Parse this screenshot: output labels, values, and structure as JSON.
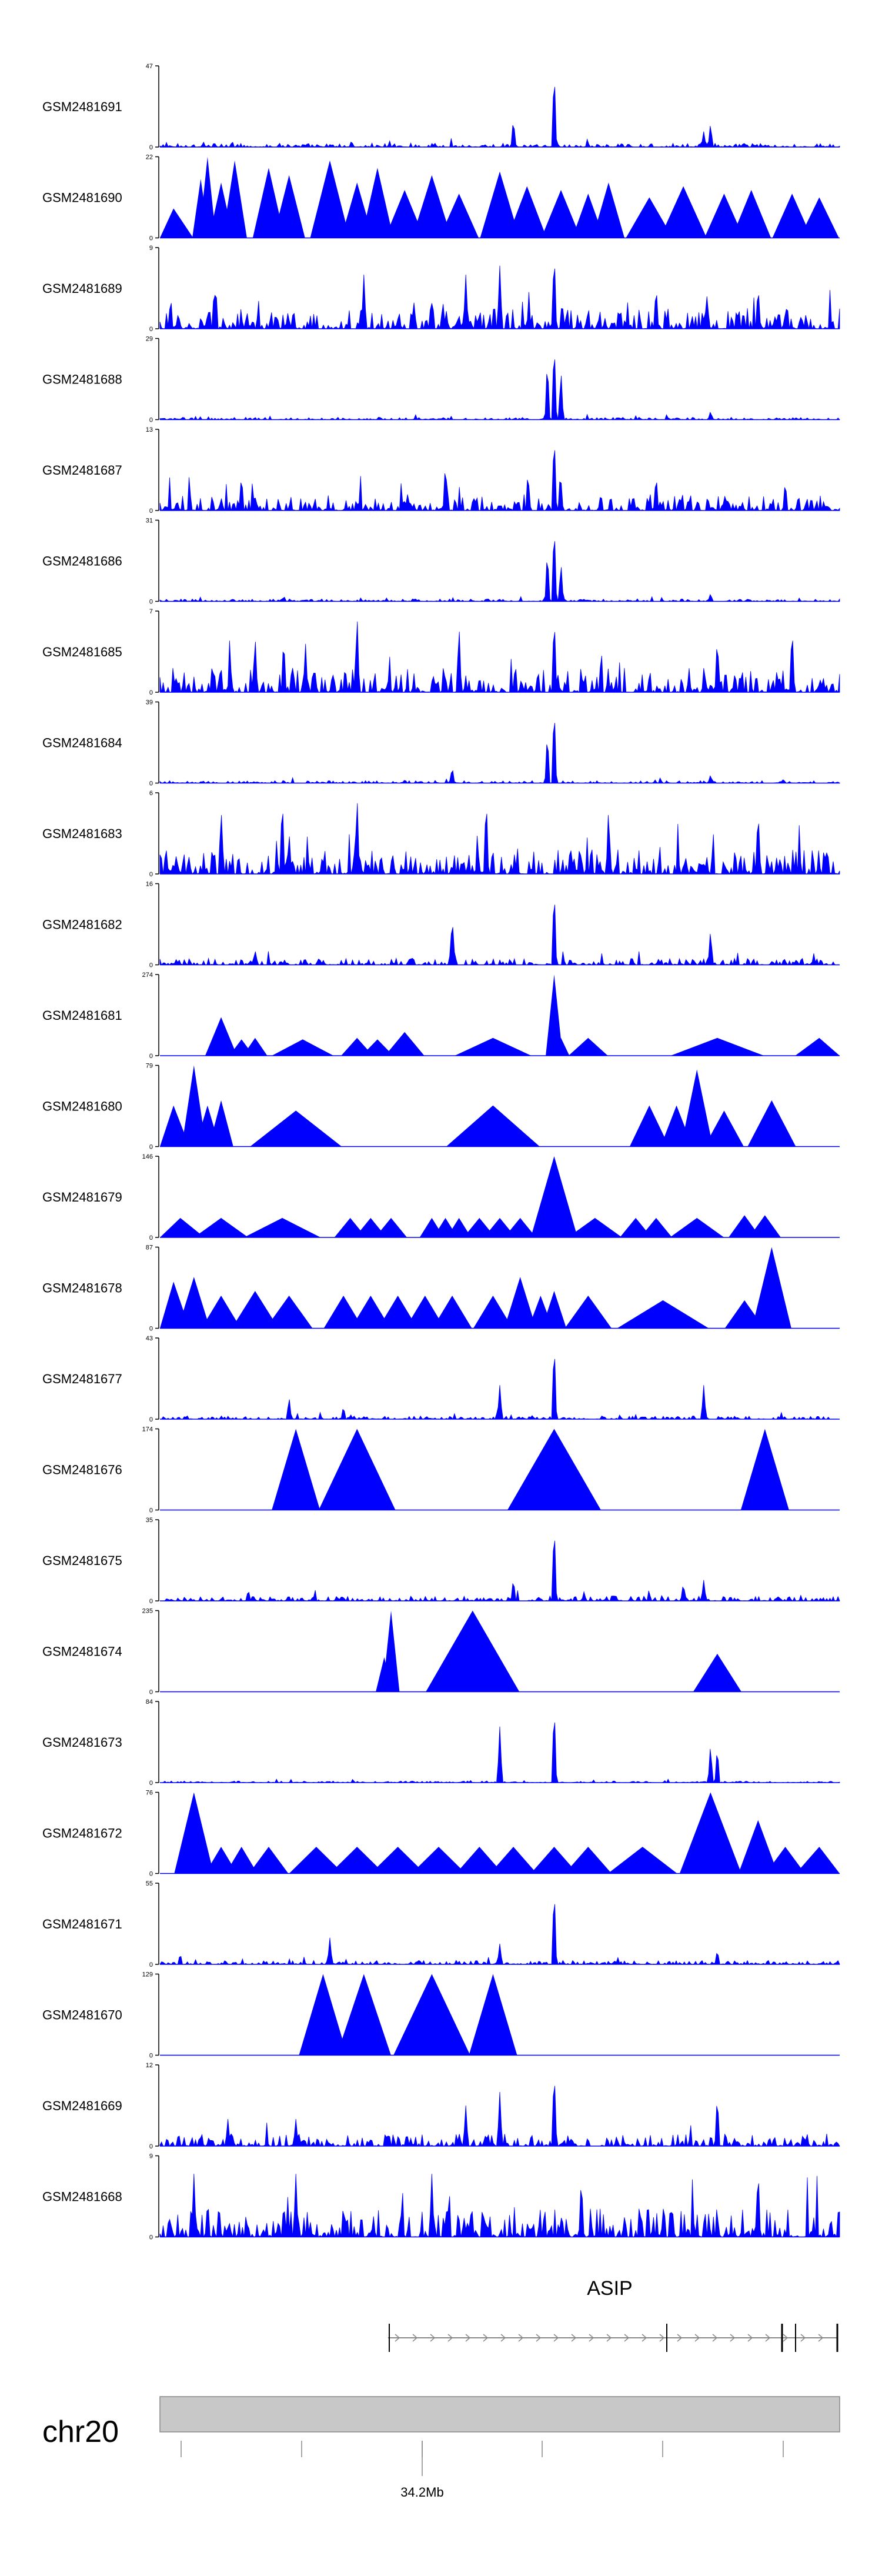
{
  "chart_data": {
    "type": "area",
    "x_unit": "genomic position",
    "tracks": [
      {
        "name": "GSM2481691",
        "ymax": 47,
        "style": "dense",
        "peaks": [
          [
            0.58,
            47
          ],
          [
            0.52,
            17
          ],
          [
            0.81,
            14
          ],
          [
            0.8,
            9
          ]
        ],
        "bg": 0.05
      },
      {
        "name": "GSM2481690",
        "ymax": 22,
        "style": "triangles",
        "peaks": [
          [
            0.02,
            8
          ],
          [
            0.06,
            16
          ],
          [
            0.07,
            22
          ],
          [
            0.09,
            15
          ],
          [
            0.11,
            21
          ],
          [
            0.16,
            19
          ],
          [
            0.19,
            17
          ],
          [
            0.25,
            21
          ],
          [
            0.29,
            15
          ],
          [
            0.32,
            19
          ],
          [
            0.36,
            13
          ],
          [
            0.4,
            17
          ],
          [
            0.44,
            12
          ],
          [
            0.5,
            18
          ],
          [
            0.54,
            14
          ],
          [
            0.59,
            13
          ],
          [
            0.63,
            12
          ],
          [
            0.66,
            15
          ],
          [
            0.72,
            11
          ],
          [
            0.77,
            14
          ],
          [
            0.83,
            12
          ],
          [
            0.87,
            13
          ],
          [
            0.93,
            12
          ],
          [
            0.97,
            11
          ]
        ],
        "bg": 0
      },
      {
        "name": "GSM2481689",
        "ymax": 9,
        "style": "dense",
        "peaks": [
          [
            0.58,
            9
          ],
          [
            0.5,
            7
          ],
          [
            0.3,
            6
          ],
          [
            0.08,
            5
          ],
          [
            0.45,
            6
          ],
          [
            0.73,
            5
          ],
          [
            0.88,
            5
          ]
        ],
        "bg": 0.25
      },
      {
        "name": "GSM2481688",
        "ymax": 29,
        "style": "dense",
        "peaks": [
          [
            0.58,
            29
          ],
          [
            0.57,
            22
          ],
          [
            0.59,
            18
          ],
          [
            0.81,
            3
          ]
        ],
        "bg": 0.03
      },
      {
        "name": "GSM2481687",
        "ymax": 13,
        "style": "dense",
        "peaks": [
          [
            0.58,
            13
          ],
          [
            0.42,
            8
          ],
          [
            0.12,
            6
          ],
          [
            0.73,
            6
          ],
          [
            0.92,
            5
          ]
        ],
        "bg": 0.2
      },
      {
        "name": "GSM2481686",
        "ymax": 31,
        "style": "dense",
        "peaks": [
          [
            0.58,
            31
          ],
          [
            0.57,
            20
          ],
          [
            0.59,
            15
          ],
          [
            0.81,
            3
          ]
        ],
        "bg": 0.03
      },
      {
        "name": "GSM2481685",
        "ymax": 7,
        "style": "dense",
        "peaks": [
          [
            0.29,
            7
          ],
          [
            0.58,
            7
          ],
          [
            0.44,
            6
          ],
          [
            0.14,
            5
          ],
          [
            0.82,
            5
          ],
          [
            0.93,
            6
          ]
        ],
        "bg": 0.3
      },
      {
        "name": "GSM2481684",
        "ymax": 39,
        "style": "dense",
        "peaks": [
          [
            0.58,
            39
          ],
          [
            0.57,
            25
          ],
          [
            0.43,
            8
          ],
          [
            0.81,
            4
          ]
        ],
        "bg": 0.03
      },
      {
        "name": "GSM2481683",
        "ymax": 6,
        "style": "dense",
        "peaks": [
          [
            0.18,
            6
          ],
          [
            0.29,
            6
          ],
          [
            0.48,
            6
          ],
          [
            0.09,
            5
          ],
          [
            0.66,
            5
          ],
          [
            0.88,
            5
          ]
        ],
        "bg": 0.3
      },
      {
        "name": "GSM2481682",
        "ymax": 16,
        "style": "dense",
        "peaks": [
          [
            0.58,
            16
          ],
          [
            0.43,
            10
          ],
          [
            0.81,
            7
          ],
          [
            0.14,
            3
          ]
        ],
        "bg": 0.08
      },
      {
        "name": "GSM2481681",
        "ymax": 274,
        "style": "triangles",
        "peaks": [
          [
            0.09,
            130
          ],
          [
            0.12,
            55
          ],
          [
            0.14,
            60
          ],
          [
            0.21,
            55
          ],
          [
            0.29,
            60
          ],
          [
            0.32,
            55
          ],
          [
            0.36,
            80
          ],
          [
            0.49,
            60
          ],
          [
            0.58,
            274
          ],
          [
            0.59,
            60
          ],
          [
            0.63,
            60
          ],
          [
            0.82,
            60
          ],
          [
            0.97,
            60
          ]
        ],
        "bg": 0
      },
      {
        "name": "GSM2481680",
        "ymax": 79,
        "style": "triangles",
        "peaks": [
          [
            0.02,
            40
          ],
          [
            0.05,
            79
          ],
          [
            0.07,
            40
          ],
          [
            0.09,
            45
          ],
          [
            0.2,
            35
          ],
          [
            0.49,
            40
          ],
          [
            0.72,
            40
          ],
          [
            0.76,
            40
          ],
          [
            0.79,
            75
          ],
          [
            0.83,
            35
          ],
          [
            0.9,
            45
          ]
        ],
        "bg": 0
      },
      {
        "name": "GSM2481679",
        "ymax": 146,
        "style": "triangles",
        "peaks": [
          [
            0.03,
            35
          ],
          [
            0.09,
            35
          ],
          [
            0.18,
            35
          ],
          [
            0.28,
            35
          ],
          [
            0.31,
            35
          ],
          [
            0.34,
            35
          ],
          [
            0.4,
            35
          ],
          [
            0.42,
            35
          ],
          [
            0.44,
            35
          ],
          [
            0.47,
            35
          ],
          [
            0.5,
            35
          ],
          [
            0.53,
            35
          ],
          [
            0.58,
            146
          ],
          [
            0.64,
            35
          ],
          [
            0.7,
            35
          ],
          [
            0.73,
            35
          ],
          [
            0.79,
            35
          ],
          [
            0.86,
            40
          ],
          [
            0.89,
            40
          ]
        ],
        "bg": 0
      },
      {
        "name": "GSM2481678",
        "ymax": 87,
        "style": "triangles",
        "peaks": [
          [
            0.02,
            50
          ],
          [
            0.05,
            55
          ],
          [
            0.09,
            35
          ],
          [
            0.14,
            40
          ],
          [
            0.19,
            35
          ],
          [
            0.27,
            35
          ],
          [
            0.31,
            35
          ],
          [
            0.35,
            35
          ],
          [
            0.39,
            35
          ],
          [
            0.43,
            35
          ],
          [
            0.49,
            35
          ],
          [
            0.53,
            55
          ],
          [
            0.56,
            35
          ],
          [
            0.58,
            40
          ],
          [
            0.63,
            35
          ],
          [
            0.74,
            30
          ],
          [
            0.86,
            30
          ],
          [
            0.9,
            87
          ]
        ],
        "bg": 0
      },
      {
        "name": "GSM2481677",
        "ymax": 43,
        "style": "dense",
        "peaks": [
          [
            0.58,
            43
          ],
          [
            0.5,
            18
          ],
          [
            0.8,
            18
          ],
          [
            0.19,
            12
          ],
          [
            0.27,
            7
          ]
        ],
        "bg": 0.04
      },
      {
        "name": "GSM2481676",
        "ymax": 174,
        "style": "triangles",
        "peaks": [
          [
            0.2,
            174
          ],
          [
            0.29,
            174
          ],
          [
            0.58,
            174
          ],
          [
            0.89,
            174
          ]
        ],
        "bg": 0
      },
      {
        "name": "GSM2481675",
        "ymax": 35,
        "style": "dense",
        "peaks": [
          [
            0.58,
            35
          ],
          [
            0.52,
            10
          ],
          [
            0.77,
            8
          ],
          [
            0.8,
            9
          ],
          [
            0.13,
            5
          ]
        ],
        "bg": 0.06
      },
      {
        "name": "GSM2481674",
        "ymax": 235,
        "style": "triangles",
        "peaks": [
          [
            0.33,
            100
          ],
          [
            0.34,
            235
          ],
          [
            0.46,
            235
          ],
          [
            0.82,
            110
          ]
        ],
        "bg": 0
      },
      {
        "name": "GSM2481673",
        "ymax": 84,
        "style": "dense",
        "peaks": [
          [
            0.58,
            84
          ],
          [
            0.5,
            58
          ],
          [
            0.81,
            40
          ],
          [
            0.82,
            38
          ]
        ],
        "bg": 0.02
      },
      {
        "name": "GSM2481672",
        "ymax": 76,
        "style": "triangles",
        "peaks": [
          [
            0.05,
            76
          ],
          [
            0.09,
            25
          ],
          [
            0.12,
            25
          ],
          [
            0.16,
            25
          ],
          [
            0.23,
            25
          ],
          [
            0.29,
            25
          ],
          [
            0.35,
            25
          ],
          [
            0.41,
            25
          ],
          [
            0.47,
            25
          ],
          [
            0.52,
            25
          ],
          [
            0.58,
            25
          ],
          [
            0.63,
            25
          ],
          [
            0.71,
            25
          ],
          [
            0.81,
            76
          ],
          [
            0.88,
            50
          ],
          [
            0.92,
            25
          ],
          [
            0.97,
            25
          ]
        ],
        "bg": 0
      },
      {
        "name": "GSM2481671",
        "ymax": 55,
        "style": "dense",
        "peaks": [
          [
            0.58,
            55
          ],
          [
            0.25,
            18
          ],
          [
            0.5,
            14
          ],
          [
            0.82,
            10
          ]
        ],
        "bg": 0.05
      },
      {
        "name": "GSM2481670",
        "ymax": 129,
        "style": "triangles",
        "peaks": [
          [
            0.24,
            129
          ],
          [
            0.3,
            129
          ],
          [
            0.4,
            129
          ],
          [
            0.49,
            129
          ]
        ],
        "bg": 0
      },
      {
        "name": "GSM2481669",
        "ymax": 12,
        "style": "dense",
        "peaks": [
          [
            0.58,
            12
          ],
          [
            0.5,
            8
          ],
          [
            0.82,
            8
          ],
          [
            0.45,
            6
          ],
          [
            0.1,
            4
          ],
          [
            0.2,
            4
          ]
        ],
        "bg": 0.15
      },
      {
        "name": "GSM2481668",
        "ymax": 9,
        "style": "dense",
        "peaks": [
          [
            0.05,
            7
          ],
          [
            0.2,
            7
          ],
          [
            0.4,
            7
          ],
          [
            0.62,
            7
          ],
          [
            0.88,
            8
          ]
        ],
        "bg": 0.35
      }
    ],
    "gene": {
      "name": "ASIP",
      "strand": "+"
    },
    "chromosome": {
      "name": "chr20",
      "tick_label": "34.2Mb"
    }
  }
}
